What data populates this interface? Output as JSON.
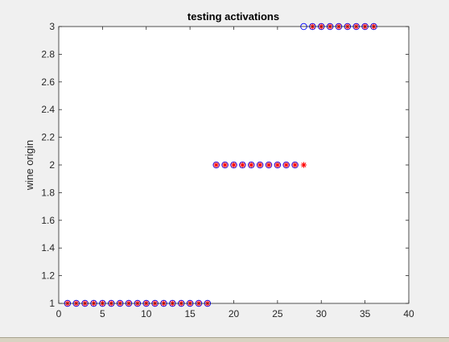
{
  "chart_data": {
    "type": "scatter",
    "title": "testing activations",
    "xlabel": "",
    "ylabel": "wine origin",
    "xlim": [
      0,
      40
    ],
    "ylim": [
      1,
      3
    ],
    "xticks": [
      0,
      5,
      10,
      15,
      20,
      25,
      30,
      35,
      40
    ],
    "yticks": [
      1,
      1.2,
      1.4,
      1.6,
      1.8,
      2,
      2.2,
      2.4,
      2.6,
      2.8,
      3
    ],
    "grid": false,
    "series": [
      {
        "marker": "circle",
        "color": "#0000ff",
        "x": [
          1,
          2,
          3,
          4,
          5,
          6,
          7,
          8,
          9,
          10,
          11,
          12,
          13,
          14,
          15,
          16,
          17,
          18,
          19,
          20,
          21,
          22,
          23,
          24,
          25,
          26,
          27,
          28,
          29,
          30,
          31,
          32,
          33,
          34,
          35,
          36
        ],
        "y": [
          1,
          1,
          1,
          1,
          1,
          1,
          1,
          1,
          1,
          1,
          1,
          1,
          1,
          1,
          1,
          1,
          1,
          2,
          2,
          2,
          2,
          2,
          2,
          2,
          2,
          2,
          2,
          3,
          3,
          3,
          3,
          3,
          3,
          3,
          3,
          3
        ]
      },
      {
        "marker": "asterisk",
        "color": "#ff0000",
        "x": [
          1,
          2,
          3,
          4,
          5,
          6,
          7,
          8,
          9,
          10,
          11,
          12,
          13,
          14,
          15,
          16,
          17,
          18,
          19,
          20,
          21,
          22,
          23,
          24,
          25,
          26,
          27,
          28,
          29,
          30,
          31,
          32,
          33,
          34,
          35,
          36
        ],
        "y": [
          1,
          1,
          1,
          1,
          1,
          1,
          1,
          1,
          1,
          1,
          1,
          1,
          1,
          1,
          1,
          1,
          1,
          2,
          2,
          2,
          2,
          2,
          2,
          2,
          2,
          2,
          2,
          2,
          3,
          3,
          3,
          3,
          3,
          3,
          3,
          3
        ]
      }
    ]
  }
}
